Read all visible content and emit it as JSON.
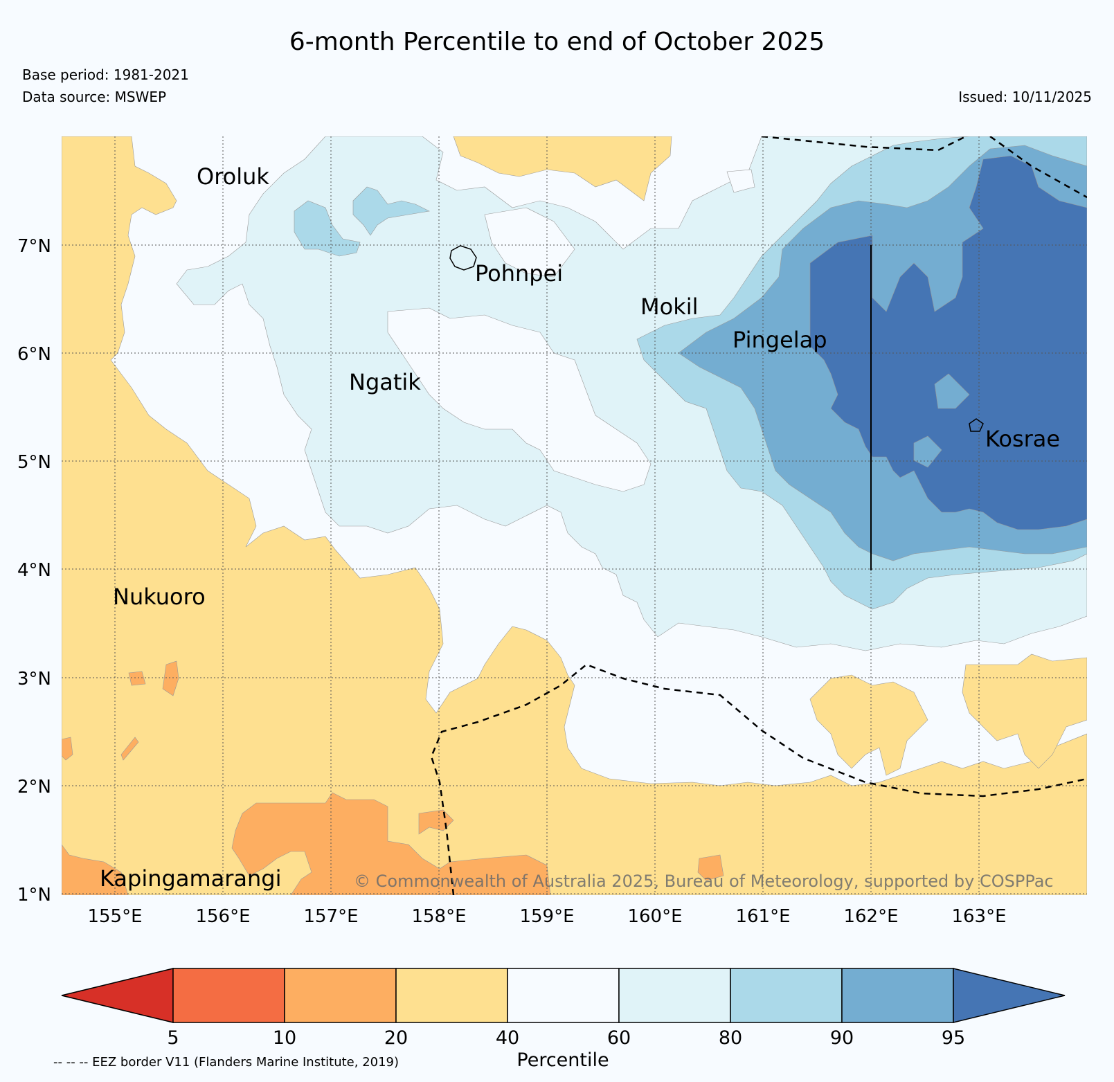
{
  "header": {
    "title": "6-month Percentile to end of October 2025",
    "base_period": "Base period: 1981-2021",
    "data_source": "Data source: MSWEP",
    "issued": "Issued: 10/11/2025"
  },
  "map": {
    "lon_labels": [
      "155°E",
      "156°E",
      "157°E",
      "158°E",
      "159°E",
      "160°E",
      "161°E",
      "162°E",
      "163°E"
    ],
    "lat_labels": [
      "1°N",
      "2°N",
      "3°N",
      "4°N",
      "5°N",
      "6°N",
      "7°N"
    ],
    "places": [
      "Oroluk",
      "Pohnpei",
      "Mokil",
      "Pingelap",
      "Ngatik",
      "Kosrae",
      "Nukuoro",
      "Kapingamarangi"
    ],
    "copyright": "© Commonwealth of Australia 2025, Bureau of Meteorology, supported by COSPPac",
    "colors": {
      "p5": "#d73027",
      "p10": "#f46d43",
      "p20": "#fdae61",
      "p40": "#fee090",
      "p60": "#f7fbff",
      "p80": "#e0f3f8",
      "p90": "#abd9e9",
      "p95": "#74add1",
      "p100": "#4575b4"
    }
  },
  "colorbar": {
    "ticks": [
      "5",
      "10",
      "20",
      "40",
      "60",
      "80",
      "90",
      "95"
    ],
    "label": "Percentile",
    "colors": [
      "#d73027",
      "#f46d43",
      "#fdae61",
      "#fee090",
      "#f7fbff",
      "#e0f3f8",
      "#abd9e9",
      "#74add1",
      "#4575b4"
    ]
  },
  "footer": {
    "eez_note": "-- -- -- EEZ border V11 (Flanders Marine Institute, 2019)"
  }
}
